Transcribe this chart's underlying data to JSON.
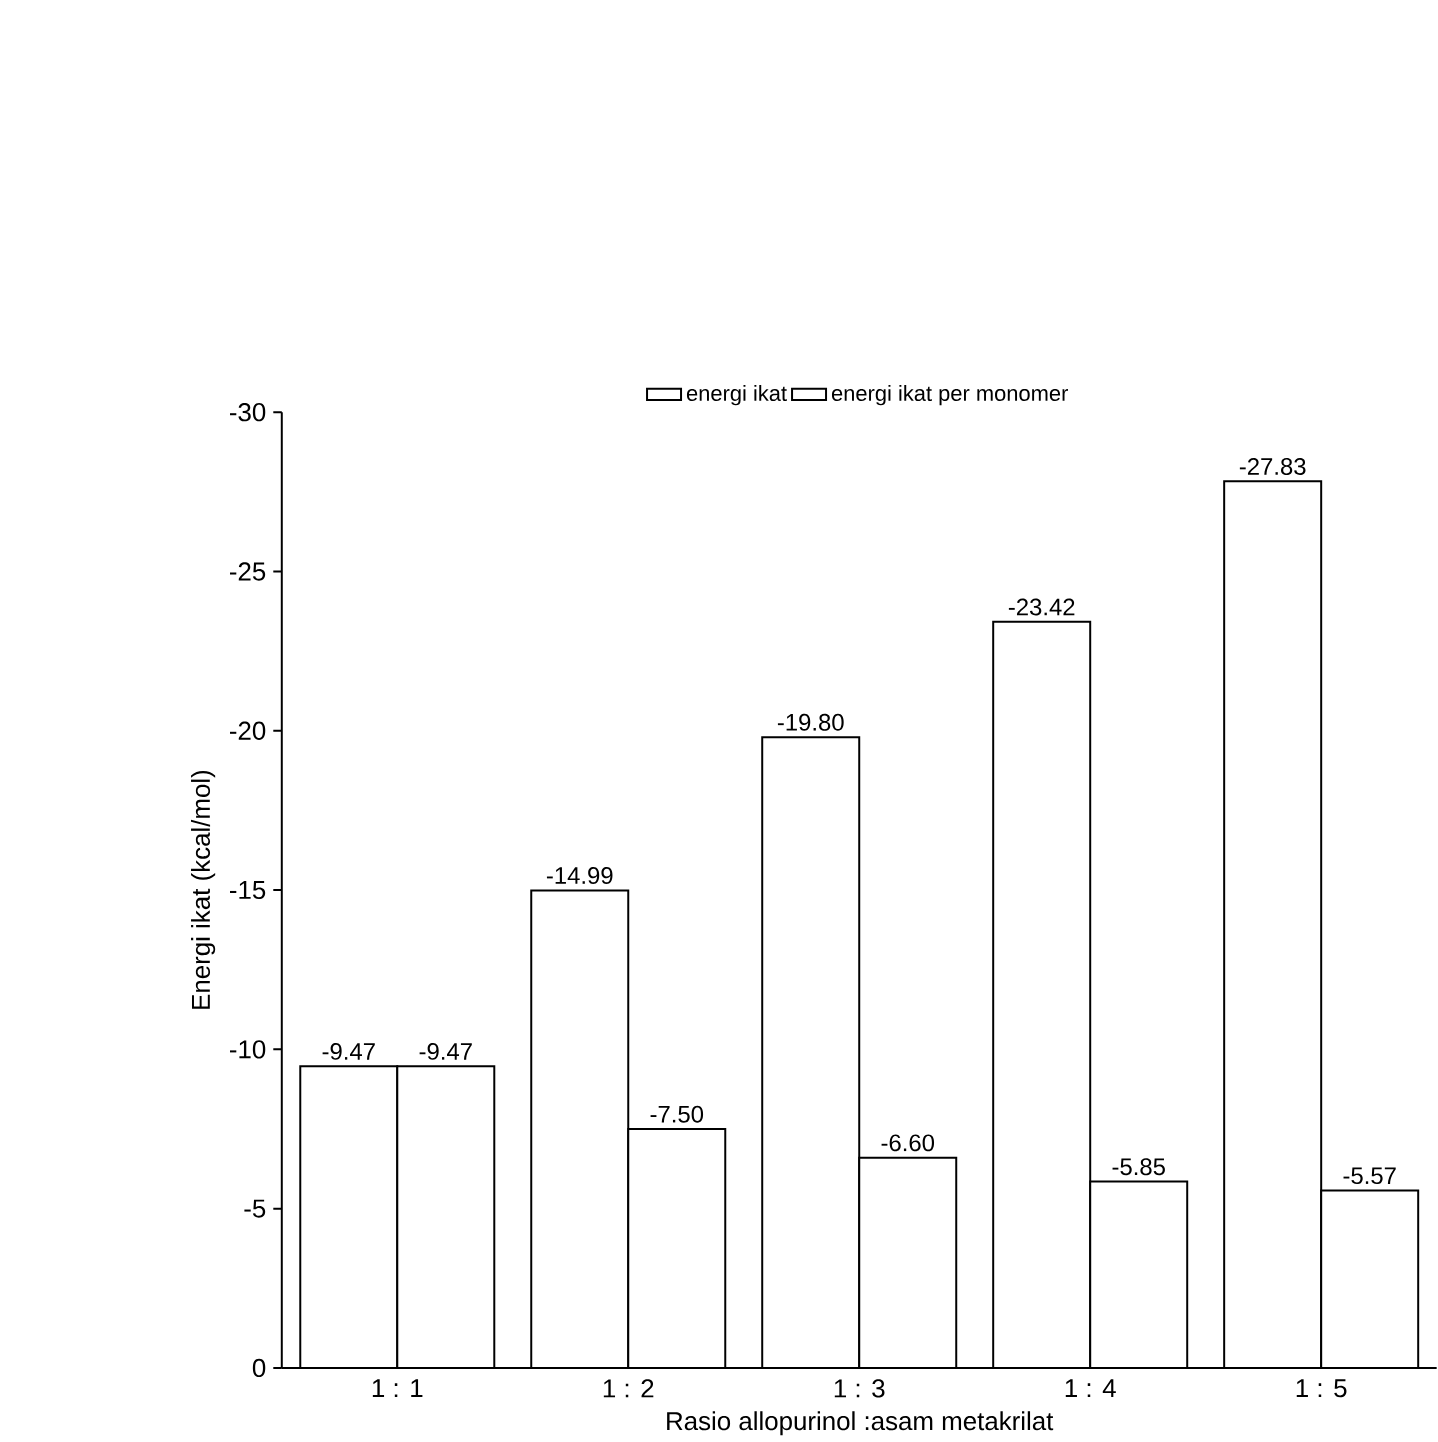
{
  "chart_data": {
    "type": "bar",
    "xlabel": "Rasio allopurinol :asam metakrilat",
    "ylabel": "Energi ikat (kcal/mol)",
    "categories": [
      "1 : 1",
      "1 : 2",
      "1 : 3",
      "1 : 4",
      "1 : 5"
    ],
    "series": [
      {
        "name": "energi ikat",
        "color": "#ffffff",
        "values": [
          -9.47,
          -14.99,
          -19.8,
          -23.42,
          -27.83
        ],
        "value_labels": [
          "-9.47",
          "-14.99",
          "-19.80",
          "-23.42",
          "-27.83"
        ]
      },
      {
        "name": "energi ikat per monomer",
        "color": "#ffffff",
        "values": [
          -9.47,
          -7.5,
          -6.6,
          -5.85,
          -5.57
        ],
        "value_labels": [
          "-9.47",
          "-7.50",
          "-6.60",
          "-5.85",
          "-5.57"
        ]
      }
    ],
    "ylim": [
      0,
      -30
    ],
    "yticks": [
      0,
      -5,
      -10,
      -15,
      -20,
      -25,
      -30
    ],
    "grid": false,
    "legend": "top"
  }
}
